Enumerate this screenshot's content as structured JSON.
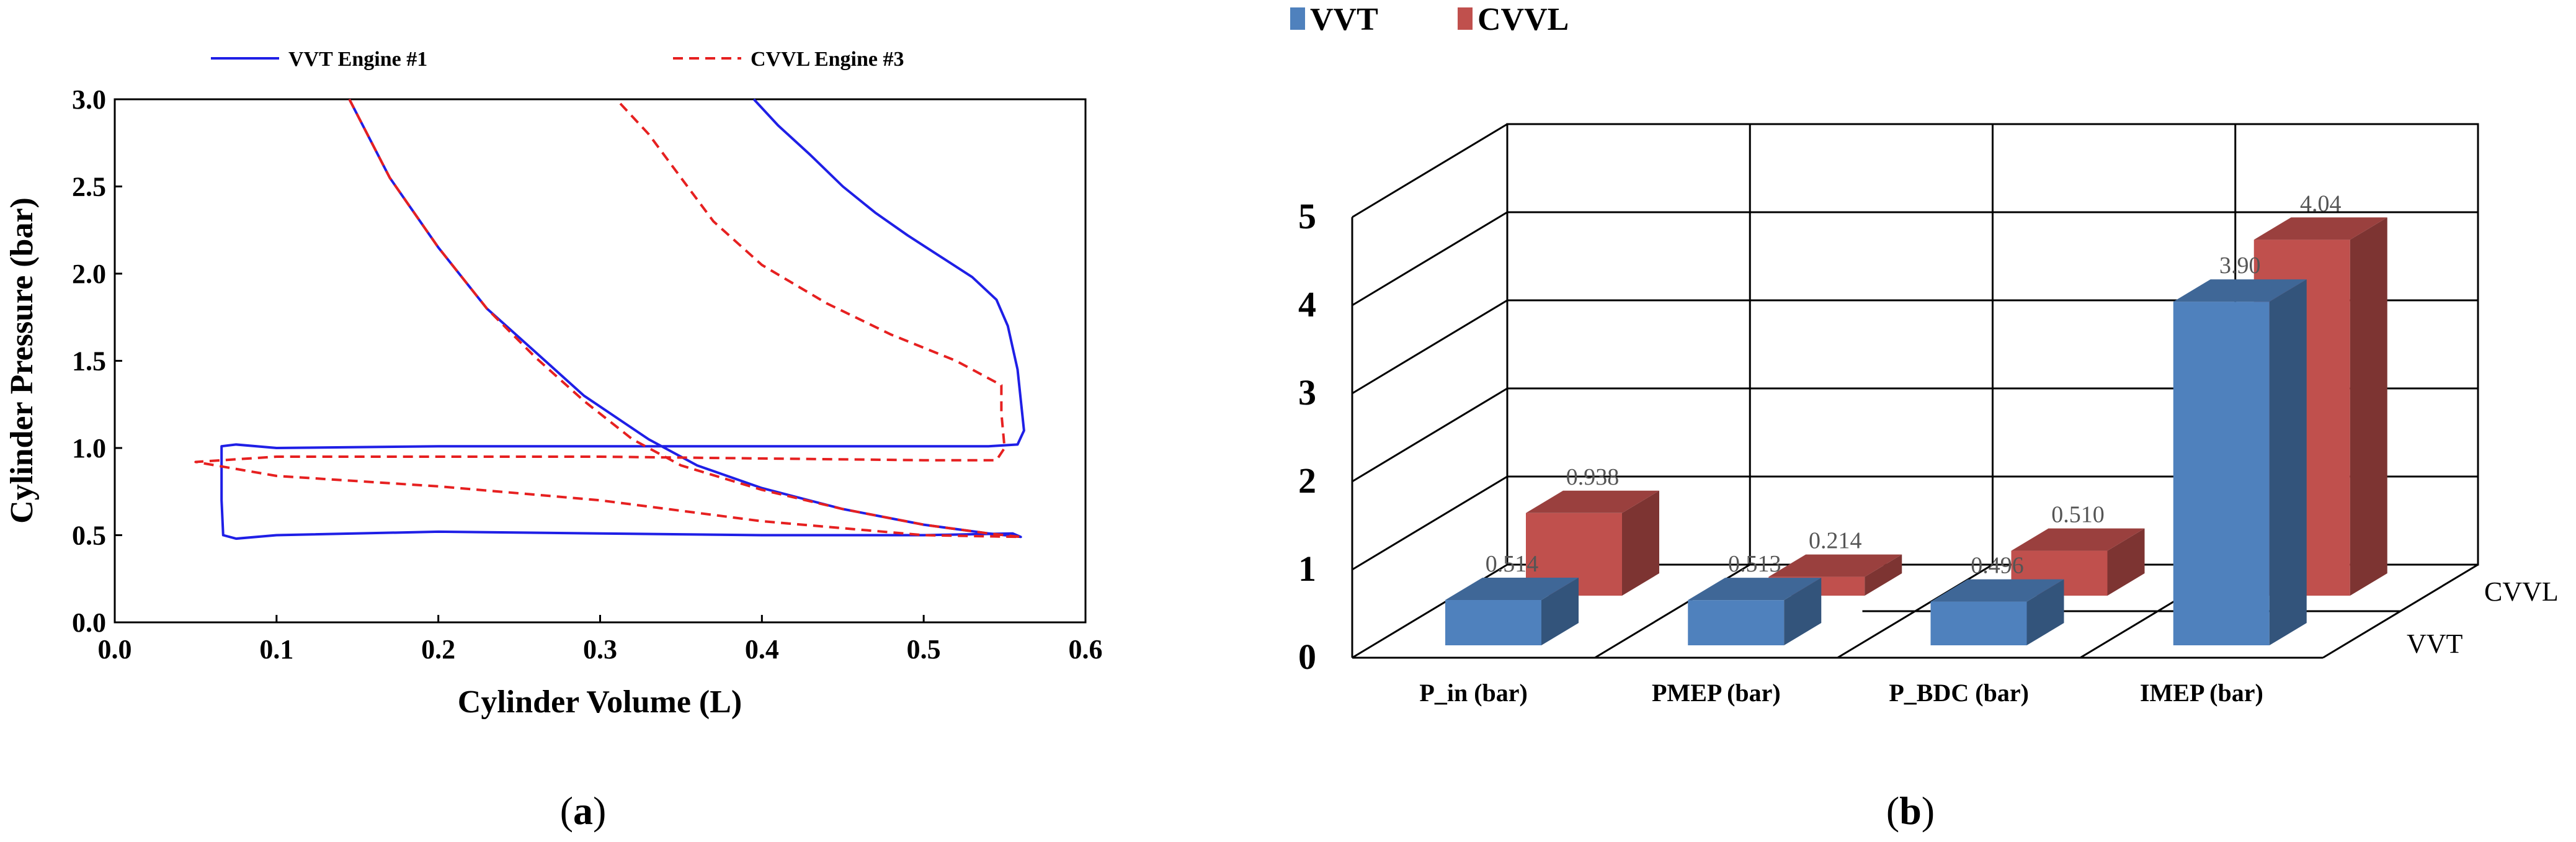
{
  "chart_data": [
    {
      "type": "line",
      "panel_label": "a",
      "xlabel": "Cylinder Volume  (L)",
      "ylabel": "Cylinder Pressure  (bar)",
      "xlim": [
        0.0,
        0.6
      ],
      "ylim": [
        0.0,
        3.0
      ],
      "xticks": [
        "0.0",
        "0.1",
        "0.2",
        "0.3",
        "0.4",
        "0.5",
        "0.6"
      ],
      "yticks": [
        "0.0",
        "0.5",
        "1.0",
        "1.5",
        "2.0",
        "2.5",
        "3.0"
      ],
      "legend_position": "top",
      "series": [
        {
          "name": "VVT Engine #1",
          "color": "#1f1fe6",
          "style": "solid",
          "points": [
            [
              0.145,
              3.0
            ],
            [
              0.17,
              2.55
            ],
            [
              0.2,
              2.15
            ],
            [
              0.23,
              1.8
            ],
            [
              0.26,
              1.55
            ],
            [
              0.29,
              1.3
            ],
            [
              0.33,
              1.05
            ],
            [
              0.36,
              0.9
            ],
            [
              0.4,
              0.77
            ],
            [
              0.45,
              0.65
            ],
            [
              0.5,
              0.56
            ],
            [
              0.54,
              0.51
            ],
            [
              0.56,
              0.49
            ],
            [
              0.555,
              0.51
            ],
            [
              0.5,
              0.5
            ],
            [
              0.4,
              0.5
            ],
            [
              0.3,
              0.51
            ],
            [
              0.2,
              0.52
            ],
            [
              0.1,
              0.5
            ],
            [
              0.075,
              0.48
            ],
            [
              0.067,
              0.5
            ],
            [
              0.066,
              0.7
            ],
            [
              0.066,
              0.9
            ],
            [
              0.066,
              1.01
            ],
            [
              0.075,
              1.02
            ],
            [
              0.1,
              1.0
            ],
            [
              0.2,
              1.01
            ],
            [
              0.3,
              1.01
            ],
            [
              0.4,
              1.01
            ],
            [
              0.5,
              1.01
            ],
            [
              0.54,
              1.01
            ],
            [
              0.558,
              1.02
            ],
            [
              0.562,
              1.1
            ],
            [
              0.558,
              1.45
            ],
            [
              0.552,
              1.7
            ],
            [
              0.545,
              1.85
            ],
            [
              0.53,
              1.98
            ],
            [
              0.51,
              2.1
            ],
            [
              0.49,
              2.22
            ],
            [
              0.47,
              2.35
            ],
            [
              0.45,
              2.5
            ],
            [
              0.43,
              2.68
            ],
            [
              0.41,
              2.85
            ],
            [
              0.395,
              3.0
            ]
          ]
        },
        {
          "name": "CVVL Engine #3",
          "color": "#e62020",
          "style": "dashed",
          "points": [
            [
              0.145,
              3.0
            ],
            [
              0.17,
              2.55
            ],
            [
              0.2,
              2.15
            ],
            [
              0.23,
              1.8
            ],
            [
              0.26,
              1.52
            ],
            [
              0.29,
              1.27
            ],
            [
              0.32,
              1.05
            ],
            [
              0.35,
              0.9
            ],
            [
              0.4,
              0.76
            ],
            [
              0.45,
              0.65
            ],
            [
              0.5,
              0.56
            ],
            [
              0.54,
              0.51
            ],
            [
              0.56,
              0.49
            ],
            [
              0.5,
              0.5
            ],
            [
              0.4,
              0.58
            ],
            [
              0.3,
              0.7
            ],
            [
              0.2,
              0.78
            ],
            [
              0.1,
              0.84
            ],
            [
              0.05,
              0.92
            ],
            [
              0.1,
              0.95
            ],
            [
              0.2,
              0.95
            ],
            [
              0.3,
              0.95
            ],
            [
              0.4,
              0.94
            ],
            [
              0.5,
              0.93
            ],
            [
              0.545,
              0.93
            ],
            [
              0.55,
              1.0
            ],
            [
              0.548,
              1.2
            ],
            [
              0.548,
              1.36
            ],
            [
              0.52,
              1.5
            ],
            [
              0.48,
              1.65
            ],
            [
              0.44,
              1.83
            ],
            [
              0.4,
              2.05
            ],
            [
              0.37,
              2.3
            ],
            [
              0.35,
              2.55
            ],
            [
              0.33,
              2.8
            ],
            [
              0.31,
              3.0
            ]
          ]
        }
      ]
    },
    {
      "type": "bar",
      "panel_label": "b",
      "categories": [
        "P_in (bar)",
        "PMEP (bar)",
        "P_BDC  (bar)",
        "IMEP (bar)"
      ],
      "depth_categories": [
        "VVT",
        "CVVL"
      ],
      "ylim": [
        0,
        5
      ],
      "yticks": [
        "0",
        "1",
        "2",
        "3",
        "4",
        "5"
      ],
      "legend_position": "top-left",
      "series": [
        {
          "name": "VVT",
          "color": "#4f81bd",
          "values": [
            0.514,
            0.513,
            0.496,
            3.9
          ],
          "labels": [
            "0.514",
            "0.513",
            "0.496",
            "3.90"
          ]
        },
        {
          "name": "CVVL",
          "color": "#c0504d",
          "values": [
            0.938,
            0.214,
            0.51,
            4.04
          ],
          "labels": [
            "0.938",
            "0.214",
            "0.510",
            "4.04"
          ]
        }
      ]
    }
  ]
}
